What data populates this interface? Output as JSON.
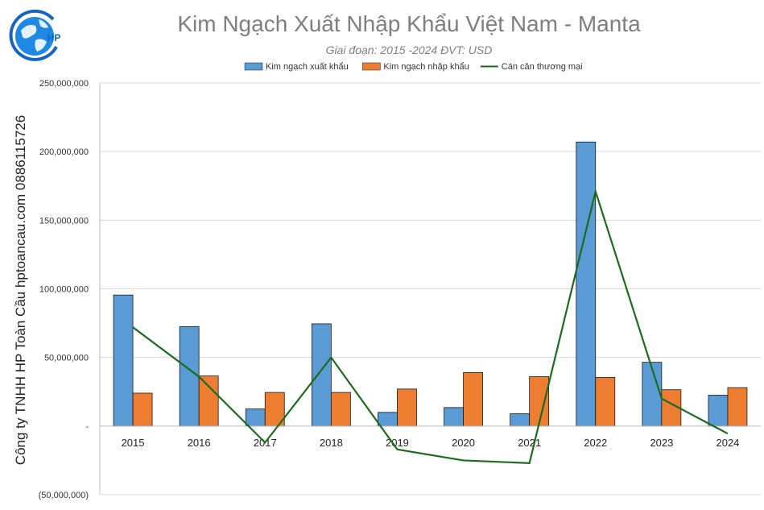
{
  "watermark_side_text": "Công ty TNHH HP Toàn Cầu hptoancau.com 0886115726",
  "logo": {
    "text": "HP",
    "icon": "globe-logo-icon",
    "color": "#1565c0"
  },
  "chart_data": {
    "type": "bar",
    "title": "Kim Ngạch Xuất Nhập Khẩu Việt Nam - Manta",
    "subtitle": "Giai đoạn: 2015 -2024  ĐVT: USD",
    "categories": [
      "2015",
      "2016",
      "2017",
      "2018",
      "2019",
      "2020",
      "2021",
      "2022",
      "2023",
      "2024"
    ],
    "series": [
      {
        "name": "Kim ngạch xuất khẩu",
        "type": "bar",
        "color": "#5b9bd5",
        "values": [
          95500000,
          72500000,
          12500000,
          74500000,
          10000000,
          13500000,
          9000000,
          207000000,
          46500000,
          22500000
        ]
      },
      {
        "name": "Kim ngạch nhập khẩu",
        "type": "bar",
        "color": "#ed7d31",
        "values": [
          24000000,
          36500000,
          24500000,
          24500000,
          27000000,
          39000000,
          36000000,
          35500000,
          26500000,
          28000000
        ]
      },
      {
        "name": "Cán cân thương mại",
        "type": "line",
        "color": "#1e6b1e",
        "values": [
          72000000,
          36000000,
          -12000000,
          50000000,
          -17000000,
          -25000000,
          -27000000,
          171000000,
          20000000,
          -5500000
        ]
      }
    ],
    "y_ticks": [
      "250,000,000",
      "200,000,000",
      "150,000,000",
      "100,000,000",
      "50,000,000",
      "-",
      "(50,000,000)"
    ],
    "ylim": [
      -50000000,
      250000000
    ],
    "grid": true,
    "legend_position": "top"
  }
}
